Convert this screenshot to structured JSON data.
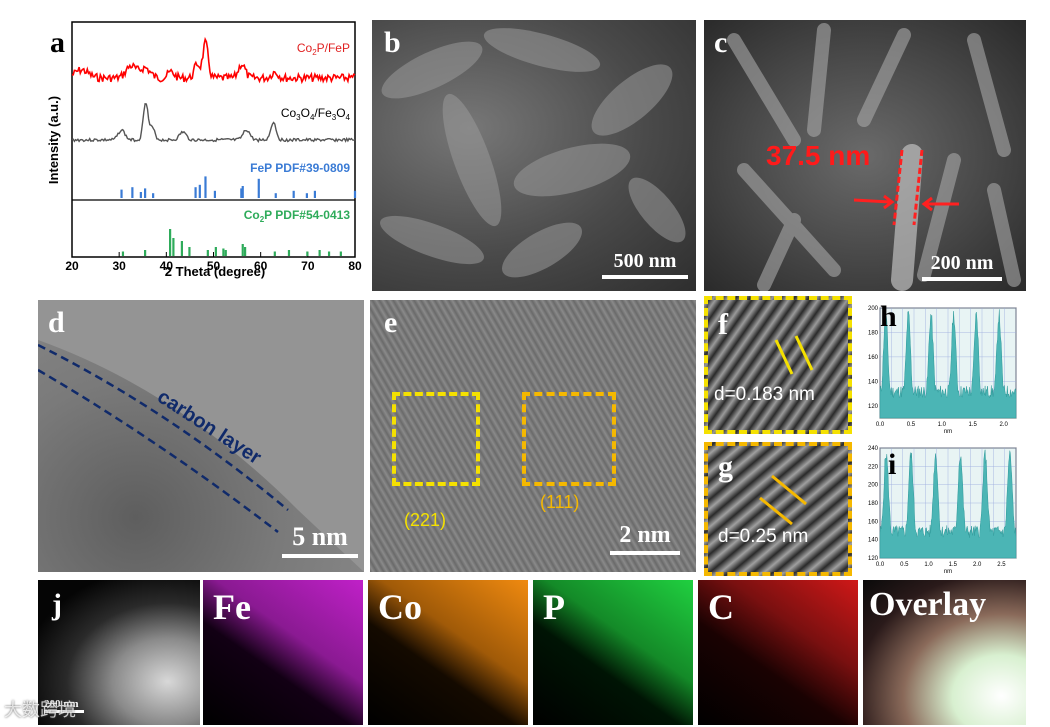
{
  "panels": {
    "a": "a",
    "b": "b",
    "c": "c",
    "d": "d",
    "e": "e",
    "f": "f",
    "g": "g",
    "h": "h",
    "i": "i",
    "j": "j"
  },
  "xrd": {
    "xlabel": "2 Theta (degree)",
    "ylabel": "Intensity (a.u.)",
    "xticks": [
      "20",
      "30",
      "40",
      "50",
      "60",
      "70",
      "80"
    ],
    "series": [
      {
        "name_main": "Co",
        "name_sub1": "2",
        "name_mid": "P/FeP",
        "color": "#ff0000"
      },
      {
        "name_main": "Co",
        "name_sub1": "3",
        "name_mid": "O",
        "name_sub2": "4",
        "name_rest": "/Fe",
        "name_sub3": "3",
        "name_end": "O",
        "name_sub4": "4",
        "color": "#555555"
      }
    ],
    "ref_fep": {
      "label": "FeP PDF#39-0809",
      "color": "#3a7bd5",
      "peaks": [
        [
          30.5,
          0.35
        ],
        [
          32.8,
          0.45
        ],
        [
          34.6,
          0.25
        ],
        [
          35.5,
          0.4
        ],
        [
          37.2,
          0.2
        ],
        [
          46.2,
          0.45
        ],
        [
          47.1,
          0.55
        ],
        [
          48.3,
          0.9
        ],
        [
          50.3,
          0.3
        ],
        [
          55.9,
          0.4
        ],
        [
          56.2,
          0.5
        ],
        [
          59.6,
          0.8
        ],
        [
          63.2,
          0.2
        ],
        [
          67.0,
          0.3
        ],
        [
          69.8,
          0.2
        ],
        [
          71.5,
          0.3
        ],
        [
          80.0,
          0.3
        ]
      ]
    },
    "ref_co2p": {
      "label_main": "Co",
      "label_sub": "2",
      "label_rest": "P PDF#54-0413",
      "color": "#2eab5a",
      "peaks": [
        [
          30.8,
          0.15
        ],
        [
          35.5,
          0.2
        ],
        [
          40.8,
          0.9
        ],
        [
          41.5,
          0.6
        ],
        [
          43.3,
          0.5
        ],
        [
          44.9,
          0.3
        ],
        [
          48.8,
          0.2
        ],
        [
          50.5,
          0.3
        ],
        [
          52.1,
          0.25
        ],
        [
          52.6,
          0.2
        ],
        [
          56.2,
          0.4
        ],
        [
          56.7,
          0.3
        ],
        [
          63.0,
          0.15
        ],
        [
          66.0,
          0.2
        ],
        [
          69.9,
          0.15
        ],
        [
          72.5,
          0.2
        ],
        [
          74.5,
          0.15
        ],
        [
          77.0,
          0.15
        ]
      ]
    }
  },
  "sem_b": {
    "scale": "500 nm"
  },
  "sem_c": {
    "scale": "200 nm",
    "measure": "37.5 nm"
  },
  "tem_d": {
    "scale": "5 nm",
    "annotation": "carbon layer"
  },
  "tem_e": {
    "scale": "2 nm",
    "plane1": "(221)",
    "plane2": "(111)"
  },
  "tem_f": {
    "dspacing": "d=0.183 nm"
  },
  "tem_g": {
    "dspacing": "d=0.25 nm"
  },
  "profile_h": {
    "yticks": [
      "120",
      "140",
      "160",
      "180",
      "200"
    ],
    "xticks": [
      "0.0",
      "0.5",
      "1.0",
      "1.5",
      "2.0"
    ],
    "xunit": "nm"
  },
  "profile_i": {
    "yticks": [
      "120",
      "140",
      "160",
      "180",
      "200",
      "220",
      "240"
    ],
    "xticks": [
      "0.0",
      "0.5",
      "1.0",
      "1.5",
      "2.0",
      "2.5"
    ],
    "xunit": "nm"
  },
  "mapping": {
    "scale": "200 nm",
    "labels": [
      "Fe",
      "Co",
      "P",
      "C",
      "Overlay"
    ],
    "colors": {
      "Fe": "#c020c8",
      "Co": "#f08a10",
      "P": "#20d040",
      "C": "#d01818"
    }
  },
  "watermark": "大数跨境"
}
